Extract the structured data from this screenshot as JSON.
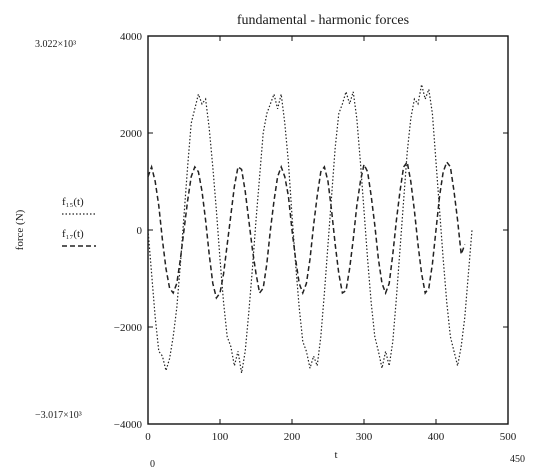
{
  "chart_data": {
    "type": "line",
    "title": "fundamental - harmonic forces",
    "xlabel": "t",
    "ylabel": "force (N)",
    "xlim": [
      0,
      500
    ],
    "ylim": [
      -4000,
      4000
    ],
    "x_ticks": [
      0,
      100,
      200,
      300,
      400,
      500
    ],
    "y_ticks": [
      -4000,
      -2000,
      0,
      2000,
      4000
    ],
    "x_tick_labels": [
      "0",
      "100",
      "200",
      "300",
      "400",
      "500"
    ],
    "y_tick_labels": [
      "−4000",
      "−2000",
      "0",
      "2000",
      "4000"
    ],
    "corner_labels": {
      "y_top": "3.022×10³",
      "y_bottom": "−3.017×10³",
      "x_left": "0",
      "x_right": "450"
    },
    "grid": false,
    "legend_position": "left, beside y-axis",
    "series": [
      {
        "name": "f₁₅(t)",
        "style": "dotted",
        "color": "#222222",
        "x": [
          0,
          5,
          10,
          15,
          20,
          25,
          30,
          35,
          40,
          45,
          50,
          55,
          60,
          65,
          70,
          75,
          80,
          85,
          90,
          95,
          100,
          105,
          110,
          115,
          120,
          125,
          130,
          135,
          140,
          145,
          150,
          155,
          160,
          165,
          170,
          175,
          180,
          185,
          190,
          195,
          200,
          205,
          210,
          215,
          220,
          225,
          230,
          235,
          240,
          245,
          250,
          255,
          260,
          265,
          270,
          275,
          280,
          285,
          290,
          295,
          300,
          305,
          310,
          315,
          320,
          325,
          330,
          335,
          340,
          345,
          350,
          355,
          360,
          365,
          370,
          375,
          380,
          385,
          390,
          395,
          400,
          405,
          410,
          415,
          420,
          425,
          430,
          435,
          440,
          445,
          450
        ],
        "y": [
          0,
          -900,
          -1800,
          -2500,
          -2600,
          -2900,
          -2650,
          -2200,
          -1600,
          -700,
          300,
          1300,
          2200,
          2500,
          2800,
          2600,
          2700,
          2100,
          1300,
          400,
          -600,
          -1500,
          -2200,
          -2400,
          -2800,
          -2500,
          -2950,
          -2500,
          -1700,
          -800,
          200,
          1100,
          2000,
          2400,
          2600,
          2800,
          2500,
          2800,
          2200,
          1400,
          300,
          -700,
          -1600,
          -2300,
          -2500,
          -2850,
          -2600,
          -2800,
          -2200,
          -1300,
          -300,
          700,
          1700,
          2400,
          2600,
          2850,
          2600,
          2850,
          2300,
          1400,
          400,
          -600,
          -1500,
          -2200,
          -2500,
          -2850,
          -2500,
          -2800,
          -2300,
          -1400,
          -400,
          600,
          1600,
          2300,
          2700,
          2600,
          3000,
          2700,
          2900,
          2400,
          1400,
          400,
          -600,
          -1500,
          -2200,
          -2500,
          -2800,
          -2400,
          -1800,
          -900,
          0
        ]
      },
      {
        "name": "f₁₇(t)",
        "style": "dashed",
        "color": "#222222",
        "x": [
          0,
          5,
          10,
          15,
          20,
          25,
          30,
          35,
          40,
          45,
          50,
          55,
          60,
          65,
          70,
          75,
          80,
          85,
          90,
          95,
          100,
          105,
          110,
          115,
          120,
          125,
          130,
          135,
          140,
          145,
          150,
          155,
          160,
          165,
          170,
          175,
          180,
          185,
          190,
          195,
          200,
          205,
          210,
          215,
          220,
          225,
          230,
          235,
          240,
          245,
          250,
          255,
          260,
          265,
          270,
          275,
          280,
          285,
          290,
          295,
          300,
          305,
          310,
          315,
          320,
          325,
          330,
          335,
          340,
          345,
          350,
          355,
          360,
          365,
          370,
          375,
          380,
          385,
          390,
          395,
          400,
          405,
          410,
          415,
          420,
          425,
          430,
          435,
          440
        ],
        "y": [
          1100,
          1300,
          1000,
          500,
          -200,
          -800,
          -1200,
          -1300,
          -1100,
          -600,
          0,
          600,
          1100,
          1300,
          1200,
          800,
          200,
          -500,
          -1100,
          -1400,
          -1300,
          -900,
          -300,
          300,
          900,
          1300,
          1250,
          800,
          200,
          -400,
          -900,
          -1300,
          -1200,
          -700,
          0,
          600,
          1100,
          1300,
          1100,
          700,
          0,
          -600,
          -1100,
          -1300,
          -1100,
          -600,
          100,
          700,
          1200,
          1300,
          1000,
          400,
          -300,
          -900,
          -1300,
          -1250,
          -800,
          -200,
          500,
          1000,
          1350,
          1200,
          700,
          100,
          -600,
          -1100,
          -1300,
          -1100,
          -500,
          200,
          800,
          1300,
          1400,
          1000,
          400,
          -300,
          -900,
          -1300,
          -1200,
          -700,
          0,
          700,
          1200,
          1400,
          1300,
          800,
          200,
          -500,
          -300
        ]
      }
    ]
  }
}
